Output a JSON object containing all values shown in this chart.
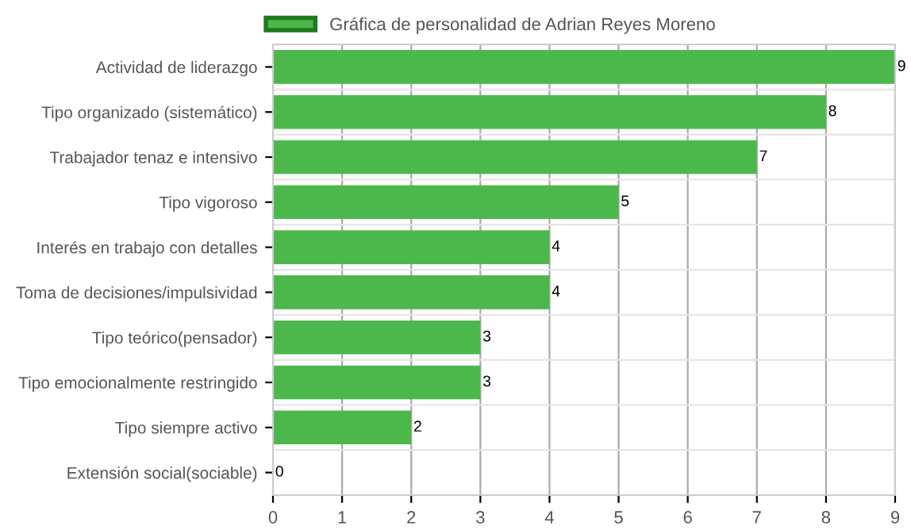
{
  "chart_data": {
    "type": "bar",
    "orientation": "horizontal",
    "categories": [
      "Actividad de liderazgo",
      "Tipo organizado (sistemático)",
      "Trabajador tenaz e intensivo",
      "Tipo vigoroso",
      "Interés en trabajo con detalles",
      "Toma de decisiones/impulsividad",
      "Tipo teórico(pensador)",
      "Tipo emocionalmente restringido",
      "Tipo siempre activo",
      "Extensión social(sociable)"
    ],
    "series": [
      {
        "name": "Gráfica de personalidad de Adrian Reyes Moreno",
        "color": "#4cb84c",
        "values": [
          9,
          8,
          7,
          5,
          4,
          4,
          3,
          3,
          2,
          0
        ]
      }
    ],
    "xlim": [
      0,
      9
    ],
    "xticks": [
      0,
      1,
      2,
      3,
      4,
      5,
      6,
      7,
      8,
      9
    ],
    "grid": true,
    "legend": "top",
    "data_labels": true
  }
}
